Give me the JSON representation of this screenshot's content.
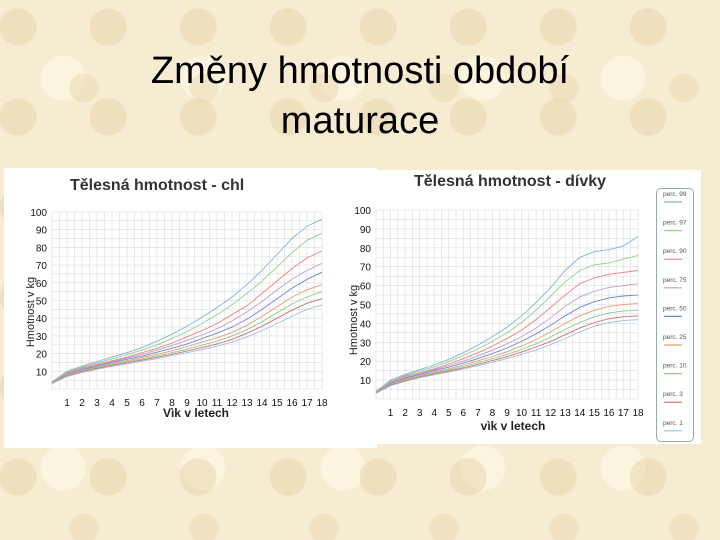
{
  "title": {
    "line1": "Změny hmotnosti období",
    "line2": "maturace"
  },
  "chart_data": [
    {
      "type": "line",
      "title": "Tělesná hmotnost - chl",
      "xlabel": "Vìk v letech",
      "ylabel": "Hmotnost v kg",
      "xlim": [
        0,
        18
      ],
      "ylim": [
        0,
        100
      ],
      "x_ticks": [
        1,
        2,
        3,
        4,
        5,
        6,
        7,
        8,
        9,
        10,
        11,
        12,
        13,
        14,
        15,
        16,
        17,
        18
      ],
      "x_tick_labels": [
        "1",
        "2",
        "3",
        "4",
        "5",
        "6",
        "7",
        "8",
        "9",
        "10",
        "11",
        "12",
        "13",
        "14",
        "15",
        "16",
        "17",
        "18"
      ],
      "y_ticks": [
        10,
        20,
        30,
        40,
        50,
        60,
        70,
        80,
        90,
        100
      ],
      "y_tick_labels": [
        "10",
        "20",
        "30",
        "40",
        "50",
        "60",
        "70",
        "80",
        "90",
        "100"
      ],
      "grid": true,
      "x": [
        0,
        1,
        2,
        3,
        4,
        5,
        6,
        7,
        8,
        9,
        10,
        11,
        12,
        13,
        14,
        15,
        16,
        17,
        18
      ],
      "series": [
        {
          "color": "#7fb3e0",
          "values": [
            4,
            10,
            13,
            15.5,
            18,
            20.5,
            23.5,
            27,
            31,
            35.5,
            40.5,
            46,
            52,
            59,
            67,
            76,
            85,
            92,
            96
          ]
        },
        {
          "color": "#8fd28f",
          "values": [
            3.8,
            9.5,
            12.5,
            14.8,
            17,
            19.5,
            22,
            25,
            28.5,
            32.5,
            37,
            42,
            47.5,
            54,
            61,
            69,
            77,
            84,
            88
          ]
        },
        {
          "color": "#f08080",
          "values": [
            3.6,
            9,
            12,
            14,
            16,
            18,
            20.5,
            23,
            26,
            29.5,
            33,
            37,
            42,
            47,
            54,
            61,
            68,
            74,
            78
          ]
        },
        {
          "color": "#c0a0d0",
          "values": [
            3.5,
            8.6,
            11.5,
            13.5,
            15.5,
            17.5,
            19.5,
            22,
            24.5,
            27.5,
            30.5,
            34,
            38.5,
            43.5,
            49.5,
            56,
            62,
            67,
            71
          ]
        },
        {
          "color": "#6f86d6",
          "values": [
            3.4,
            8.2,
            11,
            13,
            15,
            16.8,
            18.6,
            20.8,
            23,
            25.5,
            28.5,
            31.5,
            35,
            39.5,
            45,
            51,
            57,
            62,
            66
          ]
        },
        {
          "color": "#e0a070",
          "values": [
            3.3,
            7.9,
            10.5,
            12.5,
            14.3,
            16,
            17.8,
            19.6,
            21.6,
            24,
            26.5,
            29,
            32,
            36,
            41,
            46.5,
            52,
            56,
            59
          ]
        },
        {
          "color": "#90c890",
          "values": [
            3.2,
            7.6,
            10.1,
            12,
            13.8,
            15.4,
            17,
            18.7,
            20.5,
            22.5,
            24.8,
            27,
            30,
            33.5,
            38,
            43,
            48,
            52,
            55
          ]
        },
        {
          "color": "#d07070",
          "values": [
            3.1,
            7.3,
            9.7,
            11.6,
            13.3,
            14.8,
            16.3,
            17.9,
            19.6,
            21.4,
            23.4,
            25.5,
            28,
            31.5,
            35.5,
            40,
            44.5,
            48.5,
            51
          ]
        },
        {
          "color": "#a0c0e0",
          "values": [
            3,
            7,
            9.3,
            11.2,
            12.8,
            14.3,
            15.7,
            17.2,
            18.8,
            20.5,
            22.3,
            24.2,
            26.5,
            29.5,
            33,
            37,
            41,
            45,
            47.5
          ]
        }
      ]
    },
    {
      "type": "line",
      "title": "Tělesná hmotnost - dívky",
      "xlabel": "vìk v letech",
      "ylabel": "Hmotnost v kg",
      "xlim": [
        0,
        18
      ],
      "ylim": [
        0,
        100
      ],
      "x_ticks": [
        1,
        2,
        3,
        4,
        5,
        6,
        7,
        8,
        9,
        10,
        11,
        12,
        13,
        14,
        15,
        16,
        17,
        18
      ],
      "x_tick_labels": [
        "1",
        "2",
        "3",
        "4",
        "5",
        "6",
        "7",
        "8",
        "9",
        "10",
        "11",
        "12",
        "13",
        "14",
        "15",
        "16",
        "17",
        "18"
      ],
      "y_ticks": [
        10,
        20,
        30,
        40,
        50,
        60,
        70,
        80,
        90,
        100
      ],
      "y_tick_labels": [
        "10",
        "20",
        "30",
        "40",
        "50",
        "60",
        "70",
        "80",
        "90",
        "100"
      ],
      "grid": true,
      "legend": [
        "perc. 99",
        "perc. 97",
        "perc. 90",
        "perc. 75",
        "perc. 50",
        "perc. 25",
        "perc. 10",
        "perc. 3",
        "perc. 1"
      ],
      "legend_position": "right",
      "x": [
        0,
        1,
        2,
        3,
        4,
        5,
        6,
        7,
        8,
        9,
        10,
        11,
        12,
        13,
        14,
        15,
        16,
        17,
        18
      ],
      "series": [
        {
          "name": "perc. 99",
          "color": "#7fb3e0",
          "values": [
            4,
            10,
            13,
            15.5,
            18,
            21,
            24.5,
            28.5,
            33,
            38,
            44,
            51,
            59,
            68,
            75,
            78,
            79,
            81,
            86
          ]
        },
        {
          "name": "perc. 97",
          "color": "#8fd28f",
          "values": [
            3.8,
            9.5,
            12.5,
            14.8,
            17,
            19.8,
            23,
            26.5,
            30.5,
            35,
            40.5,
            47,
            54.5,
            62,
            68,
            71,
            72,
            74,
            76
          ]
        },
        {
          "name": "perc. 90",
          "color": "#f08080",
          "values": [
            3.6,
            9,
            12,
            14,
            16,
            18.5,
            21.3,
            24.5,
            28,
            32,
            36.5,
            42,
            48.5,
            55,
            61,
            64,
            66,
            67,
            68
          ]
        },
        {
          "name": "perc. 75",
          "color": "#c0a0d0",
          "values": [
            3.5,
            8.6,
            11.5,
            13.5,
            15.5,
            17.6,
            20,
            22.8,
            25.8,
            29.2,
            33,
            37.5,
            43,
            49,
            54,
            57,
            59,
            60,
            61
          ]
        },
        {
          "name": "perc. 50",
          "color": "#6f86d6",
          "values": [
            3.4,
            8.2,
            11,
            13,
            15,
            16.8,
            19,
            21.4,
            24,
            27,
            30.5,
            34.5,
            39,
            44,
            48.5,
            51.5,
            53.5,
            54.5,
            55
          ]
        },
        {
          "name": "perc. 25",
          "color": "#e0a070",
          "values": [
            3.3,
            7.9,
            10.5,
            12.5,
            14.3,
            16,
            18,
            20.2,
            22.5,
            25,
            28,
            31.5,
            35.5,
            40,
            44,
            47,
            49,
            50,
            50.5
          ]
        },
        {
          "name": "perc. 10",
          "color": "#90c890",
          "values": [
            3.2,
            7.6,
            10.1,
            12,
            13.8,
            15.4,
            17.2,
            19.2,
            21.3,
            23.6,
            26.2,
            29.2,
            32.8,
            36.8,
            40.5,
            43.5,
            45.5,
            46.5,
            47
          ]
        },
        {
          "name": "perc. 3",
          "color": "#d07070",
          "values": [
            3.1,
            7.3,
            9.7,
            11.6,
            13.3,
            14.8,
            16.5,
            18.3,
            20.3,
            22.4,
            24.8,
            27.5,
            30.5,
            34,
            37.5,
            40.5,
            42.5,
            43.5,
            44
          ]
        },
        {
          "name": "perc. 1",
          "color": "#a0c0e0",
          "values": [
            3,
            7,
            9.3,
            11.2,
            12.8,
            14.3,
            15.9,
            17.6,
            19.4,
            21.4,
            23.6,
            26,
            28.8,
            32,
            35.5,
            38.5,
            40.5,
            41.5,
            42
          ]
        }
      ]
    }
  ]
}
